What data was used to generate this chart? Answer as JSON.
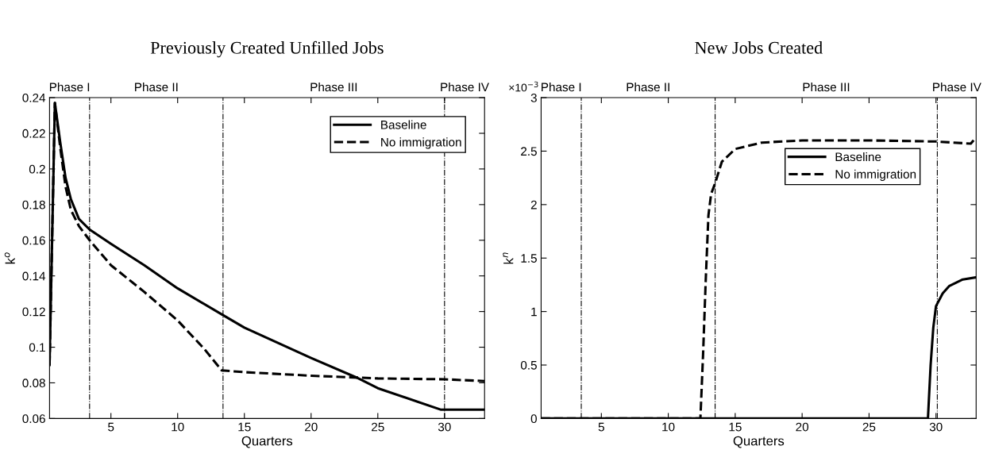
{
  "chart_data": [
    {
      "type": "line",
      "title": "Previously Created Unfilled Jobs",
      "xlabel": "Quarters",
      "ylabel": "k$^{o}$",
      "xlim": [
        0.4,
        33
      ],
      "ylim": [
        0.06,
        0.24
      ],
      "xticks": [
        5,
        10,
        15,
        20,
        25,
        30
      ],
      "yticks": [
        0.06,
        0.08,
        0.1,
        0.12,
        0.14,
        0.16,
        0.18,
        0.2,
        0.22,
        0.24
      ],
      "grid": false,
      "legend": "top right",
      "series": [
        {
          "name": "Baseline",
          "color": "#000000",
          "line_style": "solid",
          "x": [
            0.4,
            0.8,
            1.2,
            1.6,
            2.0,
            2.6,
            3.4,
            5,
            7.5,
            10,
            13.4,
            15,
            20,
            23.4,
            25,
            29.7,
            33
          ],
          "values": [
            0.09,
            0.237,
            0.215,
            0.195,
            0.183,
            0.172,
            0.166,
            0.158,
            0.146,
            0.133,
            0.118,
            0.111,
            0.094,
            0.083,
            0.077,
            0.065,
            0.065
          ]
        },
        {
          "name": "No immigration",
          "color": "#000000",
          "line_style": "dashed",
          "x": [
            0.4,
            0.8,
            1.2,
            1.6,
            2.0,
            2.6,
            3.4,
            5,
            7.5,
            10,
            12,
            13.3,
            15,
            20,
            25,
            30,
            33
          ],
          "values": [
            0.09,
            0.237,
            0.212,
            0.19,
            0.177,
            0.168,
            0.16,
            0.146,
            0.131,
            0.115,
            0.099,
            0.087,
            0.086,
            0.084,
            0.0825,
            0.082,
            0.081
          ]
        }
      ],
      "ref_lines": [
        {
          "axis": "x",
          "value": 3.4,
          "line_style": "dashdot",
          "color": "#000000"
        },
        {
          "axis": "x",
          "value": 13.4,
          "line_style": "dashdot",
          "color": "#000000"
        },
        {
          "axis": "x",
          "value": 30,
          "line_style": "dashdot",
          "color": "#000000"
        }
      ],
      "annotations": [
        "Phase I",
        "Phase II",
        "Phase III",
        "Phase IV"
      ]
    },
    {
      "type": "line",
      "title": "New Jobs Created",
      "xlabel": "Quarters",
      "ylabel": "k$^{n}$",
      "xlim": [
        0.5,
        33
      ],
      "ylim": [
        0,
        3
      ],
      "xticks": [
        5,
        10,
        15,
        20,
        25,
        30
      ],
      "yticks": [
        0,
        0.5,
        1,
        1.5,
        2,
        2.5,
        3
      ],
      "grid": false,
      "legend": "right",
      "annotations": [
        "×10$^{−3}$",
        "Phase I",
        "Phase II",
        "Phase III",
        "Phase IV"
      ],
      "series": [
        {
          "name": "Baseline",
          "color": "#000000",
          "line_style": "solid",
          "x": [
            0.5,
            29.4,
            29.6,
            29.8,
            30,
            30.5,
            31,
            32,
            33
          ],
          "values": [
            0,
            0,
            0.5,
            0.85,
            1.05,
            1.17,
            1.24,
            1.3,
            1.32
          ]
        },
        {
          "name": "No immigration",
          "color": "#000000",
          "line_style": "dashed",
          "x": [
            0.5,
            12.4,
            12.6,
            12.8,
            13.0,
            13.2,
            13.5,
            14,
            15,
            17,
            20,
            25,
            30,
            32.6,
            33
          ],
          "values": [
            0,
            0,
            0.6,
            1.3,
            1.9,
            2.1,
            2.2,
            2.4,
            2.52,
            2.58,
            2.6,
            2.6,
            2.59,
            2.57,
            2.63
          ]
        }
      ],
      "ref_lines": [
        {
          "axis": "x",
          "value": 3.5,
          "line_style": "dashdot",
          "color": "#000000"
        },
        {
          "axis": "x",
          "value": 13.5,
          "line_style": "dashdot",
          "color": "#000000"
        },
        {
          "axis": "x",
          "value": 30.1,
          "line_style": "dashdot",
          "color": "#000000"
        }
      ]
    }
  ]
}
